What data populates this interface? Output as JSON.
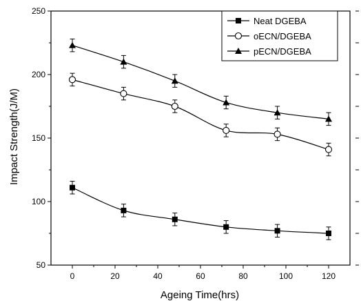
{
  "chart_data": {
    "type": "line",
    "title": "",
    "xlabel": "Ageing Time(hrs)",
    "ylabel": "Impact Strength(J/M)",
    "xlim": [
      -10,
      130
    ],
    "ylim": [
      50,
      250
    ],
    "x_ticks": [
      0,
      20,
      40,
      60,
      80,
      100,
      120
    ],
    "y_ticks": [
      50,
      100,
      150,
      200,
      250
    ],
    "x": [
      0,
      24,
      48,
      72,
      96,
      120
    ],
    "grid": false,
    "legend_position": "top-right",
    "error_bars": true,
    "series": [
      {
        "name": "Neat DGEBA",
        "marker": "filled-square",
        "color": "#000000",
        "values": [
          111,
          93,
          86,
          80,
          77,
          75
        ],
        "errors": [
          5,
          5,
          5,
          5,
          5,
          5
        ]
      },
      {
        "name": "oECN/DGEBA",
        "marker": "open-circle",
        "color": "#000000",
        "values": [
          196,
          185,
          175,
          156,
          153,
          141
        ],
        "errors": [
          5,
          5,
          5,
          5,
          5,
          5
        ]
      },
      {
        "name": "pECN/DGEBA",
        "marker": "filled-triangle",
        "color": "#000000",
        "values": [
          223,
          210,
          195,
          178,
          170,
          165
        ],
        "errors": [
          5,
          5,
          5,
          5,
          5,
          5
        ]
      }
    ]
  }
}
